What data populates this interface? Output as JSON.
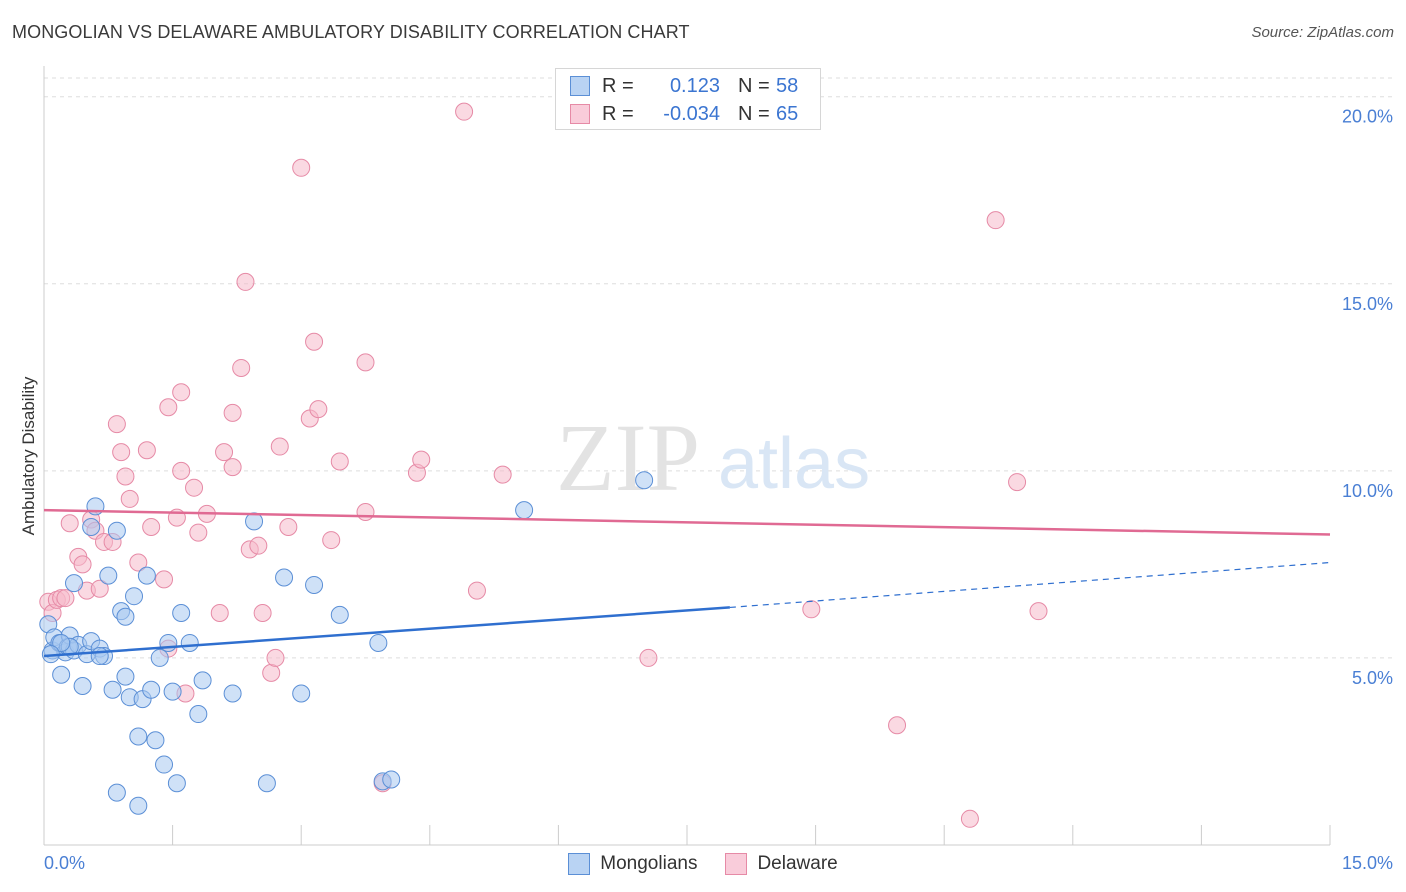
{
  "title": "MONGOLIAN VS DELAWARE AMBULATORY DISABILITY CORRELATION CHART",
  "source": "Source: ZipAtlas.com",
  "watermark": {
    "zip": "ZIP",
    "atlas": "atlas"
  },
  "legend_top": [
    {
      "r_label": "R =",
      "r_value": "0.123",
      "n_label": "N =",
      "n_value": "58"
    },
    {
      "r_label": "R =",
      "r_value": "-0.034",
      "n_label": "N =",
      "n_value": "65"
    }
  ],
  "legend_bottom": [
    "Mongolians",
    "Delaware"
  ],
  "colors": {
    "blue_fill": "#a8c8f0",
    "blue_stroke": "#5b8fd6",
    "blue_line": "#2f6fcf",
    "pink_fill": "#f6b9cb",
    "pink_stroke": "#e68aa6",
    "pink_line": "#e06a93",
    "grid": "#dddddd",
    "tick_text": "#4a7fd4"
  },
  "chart_data": {
    "type": "scatter",
    "title": "MONGOLIAN VS DELAWARE AMBULATORY DISABILITY CORRELATION CHART",
    "xlabel": "",
    "ylabel": "Ambulatory Disability",
    "xlim": [
      0,
      15
    ],
    "ylim": [
      0,
      20.5
    ],
    "x_tick_labels": [
      "0.0%",
      "15.0%"
    ],
    "y_ticks": [
      5,
      10,
      15,
      20
    ],
    "y_tick_labels": [
      "5.0%",
      "10.0%",
      "15.0%",
      "20.0%"
    ],
    "series": [
      {
        "name": "Mongolians",
        "r": 0.123,
        "n": 58,
        "trend": {
          "x_start": 0,
          "y_start": 5.05,
          "x_solid_end": 8.0,
          "y_solid_end": 6.35,
          "x_end": 15,
          "y_end": 7.55
        },
        "points": [
          [
            0.05,
            5.9
          ],
          [
            0.1,
            5.2
          ],
          [
            0.12,
            5.55
          ],
          [
            0.18,
            5.4
          ],
          [
            0.2,
            4.55
          ],
          [
            0.25,
            5.15
          ],
          [
            0.28,
            5.3
          ],
          [
            0.3,
            5.6
          ],
          [
            0.35,
            5.2
          ],
          [
            0.35,
            7.0
          ],
          [
            0.4,
            5.35
          ],
          [
            0.45,
            4.25
          ],
          [
            0.5,
            5.1
          ],
          [
            0.55,
            5.45
          ],
          [
            0.6,
            9.05
          ],
          [
            0.65,
            5.25
          ],
          [
            0.7,
            5.05
          ],
          [
            0.75,
            7.2
          ],
          [
            0.8,
            4.15
          ],
          [
            0.85,
            8.4
          ],
          [
            0.9,
            6.25
          ],
          [
            0.95,
            4.5
          ],
          [
            0.95,
            6.1
          ],
          [
            1.0,
            3.95
          ],
          [
            1.05,
            6.65
          ],
          [
            1.1,
            2.9
          ],
          [
            1.15,
            3.9
          ],
          [
            1.2,
            7.2
          ],
          [
            1.25,
            4.15
          ],
          [
            1.3,
            2.8
          ],
          [
            1.35,
            5.0
          ],
          [
            1.4,
            2.15
          ],
          [
            1.45,
            5.4
          ],
          [
            1.5,
            4.1
          ],
          [
            1.55,
            1.65
          ],
          [
            1.6,
            6.2
          ],
          [
            1.7,
            5.4
          ],
          [
            1.8,
            3.5
          ],
          [
            1.85,
            4.4
          ],
          [
            2.2,
            4.05
          ],
          [
            2.45,
            8.65
          ],
          [
            2.6,
            1.65
          ],
          [
            2.8,
            7.15
          ],
          [
            3.0,
            4.05
          ],
          [
            3.15,
            6.95
          ],
          [
            3.45,
            6.15
          ],
          [
            3.9,
            5.4
          ],
          [
            3.95,
            1.7
          ],
          [
            4.05,
            1.75
          ],
          [
            5.6,
            8.95
          ],
          [
            7.0,
            9.75
          ],
          [
            0.55,
            8.5
          ],
          [
            0.85,
            1.4
          ],
          [
            1.1,
            1.05
          ],
          [
            0.65,
            5.05
          ],
          [
            0.3,
            5.3
          ],
          [
            0.2,
            5.4
          ],
          [
            0.08,
            5.1
          ]
        ]
      },
      {
        "name": "Delaware",
        "r": -0.034,
        "n": 65,
        "trend": {
          "x_start": 0,
          "y_start": 8.95,
          "x_end": 15,
          "y_end": 8.3
        },
        "points": [
          [
            0.05,
            6.5
          ],
          [
            0.1,
            6.2
          ],
          [
            0.15,
            6.55
          ],
          [
            0.2,
            6.6
          ],
          [
            0.25,
            6.6
          ],
          [
            0.3,
            8.6
          ],
          [
            0.4,
            7.7
          ],
          [
            0.45,
            7.5
          ],
          [
            0.5,
            6.8
          ],
          [
            0.55,
            8.7
          ],
          [
            0.6,
            8.4
          ],
          [
            0.65,
            6.85
          ],
          [
            0.7,
            8.1
          ],
          [
            0.8,
            8.1
          ],
          [
            0.85,
            11.25
          ],
          [
            0.9,
            10.5
          ],
          [
            0.95,
            9.85
          ],
          [
            1.0,
            9.25
          ],
          [
            1.1,
            7.55
          ],
          [
            1.2,
            10.55
          ],
          [
            1.25,
            8.5
          ],
          [
            1.4,
            7.1
          ],
          [
            1.45,
            5.25
          ],
          [
            1.45,
            11.7
          ],
          [
            1.55,
            8.75
          ],
          [
            1.6,
            12.1
          ],
          [
            1.6,
            10.0
          ],
          [
            1.65,
            4.05
          ],
          [
            1.75,
            9.55
          ],
          [
            1.8,
            8.35
          ],
          [
            1.9,
            8.85
          ],
          [
            2.05,
            6.2
          ],
          [
            2.1,
            10.5
          ],
          [
            2.2,
            11.55
          ],
          [
            2.2,
            10.1
          ],
          [
            2.3,
            12.75
          ],
          [
            2.35,
            15.05
          ],
          [
            2.4,
            7.9
          ],
          [
            2.5,
            8.0
          ],
          [
            2.55,
            6.2
          ],
          [
            2.65,
            4.6
          ],
          [
            2.7,
            5.0
          ],
          [
            2.75,
            10.65
          ],
          [
            2.85,
            8.5
          ],
          [
            3.0,
            18.1
          ],
          [
            3.1,
            11.4
          ],
          [
            3.15,
            13.45
          ],
          [
            3.2,
            11.65
          ],
          [
            3.35,
            8.15
          ],
          [
            3.45,
            10.25
          ],
          [
            3.75,
            8.9
          ],
          [
            3.75,
            12.9
          ],
          [
            3.95,
            1.65
          ],
          [
            4.35,
            9.95
          ],
          [
            4.4,
            10.3
          ],
          [
            4.9,
            19.6
          ],
          [
            5.05,
            6.8
          ],
          [
            5.35,
            9.9
          ],
          [
            7.05,
            5.0
          ],
          [
            8.95,
            6.3
          ],
          [
            9.95,
            3.2
          ],
          [
            10.8,
            0.7
          ],
          [
            11.1,
            16.7
          ],
          [
            11.35,
            9.7
          ],
          [
            11.6,
            6.25
          ]
        ]
      }
    ]
  }
}
